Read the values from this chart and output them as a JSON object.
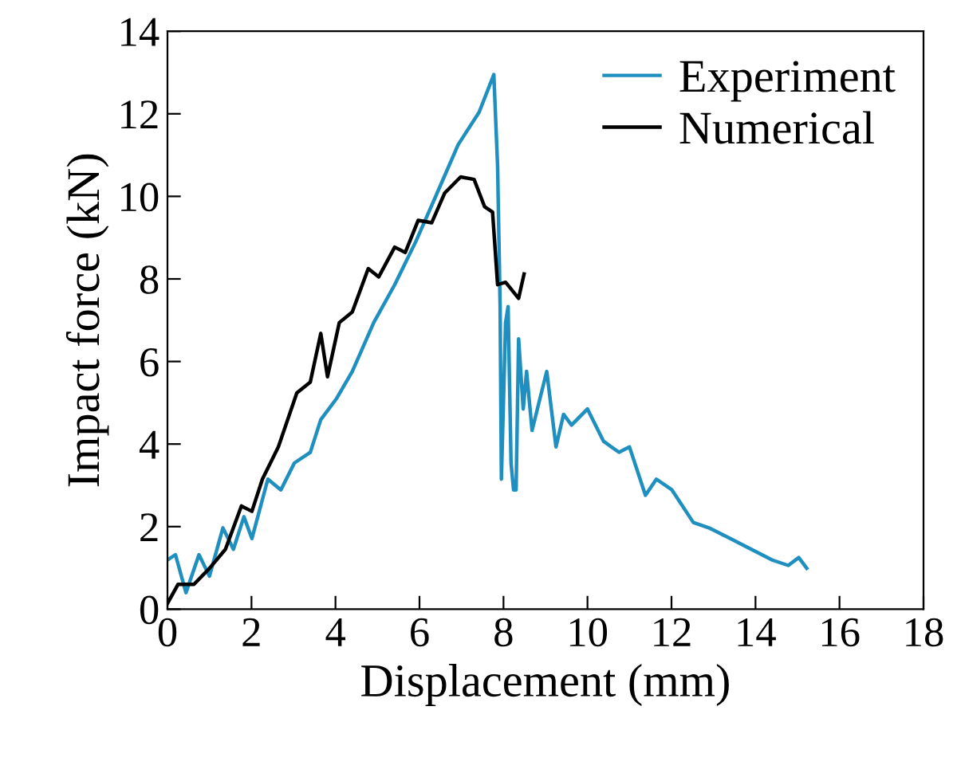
{
  "chart_data": {
    "type": "line",
    "xlabel": "Displacement (mm)",
    "ylabel": "Impact force (kN)",
    "xlim": [
      0,
      18
    ],
    "xticks": [
      0,
      2,
      4,
      6,
      8,
      10,
      12,
      14,
      16,
      18
    ],
    "ylim": [
      0,
      14
    ],
    "yticks": [
      0,
      2,
      4,
      6,
      8,
      10,
      12,
      14
    ],
    "grid": false,
    "legend": "top right",
    "marker": "none",
    "line_style": "solid",
    "series": [
      {
        "name": "Experiment",
        "color": "#1f8fbf",
        "x": [
          0,
          0.19,
          0.44,
          0.75,
          1.0,
          1.32,
          1.57,
          1.82,
          2.01,
          2.39,
          2.7,
          3.02,
          3.4,
          3.65,
          4.03,
          4.4,
          4.91,
          5.41,
          5.91,
          6.42,
          6.92,
          7.42,
          7.77,
          7.86,
          7.92,
          7.95,
          8.05,
          8.11,
          8.18,
          8.24,
          8.3,
          8.36,
          8.47,
          8.55,
          8.68,
          8.87,
          9.03,
          9.25,
          9.43,
          9.62,
          10.0,
          10.38,
          10.75,
          11.0,
          11.38,
          11.64,
          12.01,
          12.52,
          12.89,
          13.4,
          13.9,
          14.4,
          14.78,
          15.03,
          15.22
        ],
        "values": [
          1.19,
          1.32,
          0.4,
          1.32,
          0.8,
          1.97,
          1.45,
          2.24,
          1.71,
          3.15,
          2.89,
          3.54,
          3.8,
          4.59,
          5.11,
          5.76,
          6.94,
          7.86,
          8.9,
          10.08,
          11.25,
          12.04,
          12.95,
          10.73,
          7.33,
          3.15,
          6.94,
          7.33,
          3.54,
          2.89,
          2.89,
          6.55,
          4.85,
          5.76,
          4.33,
          5.11,
          5.76,
          3.93,
          4.72,
          4.46,
          4.85,
          4.07,
          3.8,
          3.93,
          2.76,
          3.15,
          2.89,
          2.1,
          1.97,
          1.71,
          1.45,
          1.19,
          1.06,
          1.25,
          0.99
        ]
      },
      {
        "name": "Numerical",
        "color": "#000000",
        "x": [
          0,
          0.25,
          0.63,
          1.0,
          1.38,
          1.76,
          2.01,
          2.26,
          2.64,
          3.08,
          3.4,
          3.65,
          3.81,
          4.09,
          4.4,
          4.78,
          5.03,
          5.41,
          5.66,
          5.97,
          6.29,
          6.6,
          6.98,
          7.3,
          7.55,
          7.74,
          7.86,
          8.05,
          8.36,
          8.49
        ],
        "values": [
          0.14,
          0.6,
          0.6,
          0.99,
          1.45,
          2.5,
          2.37,
          3.15,
          3.93,
          5.24,
          5.5,
          6.68,
          5.63,
          6.94,
          7.2,
          8.25,
          8.05,
          8.77,
          8.64,
          9.42,
          9.36,
          10.08,
          10.47,
          10.41,
          9.75,
          9.62,
          7.86,
          7.92,
          7.53,
          8.12
        ]
      }
    ]
  }
}
